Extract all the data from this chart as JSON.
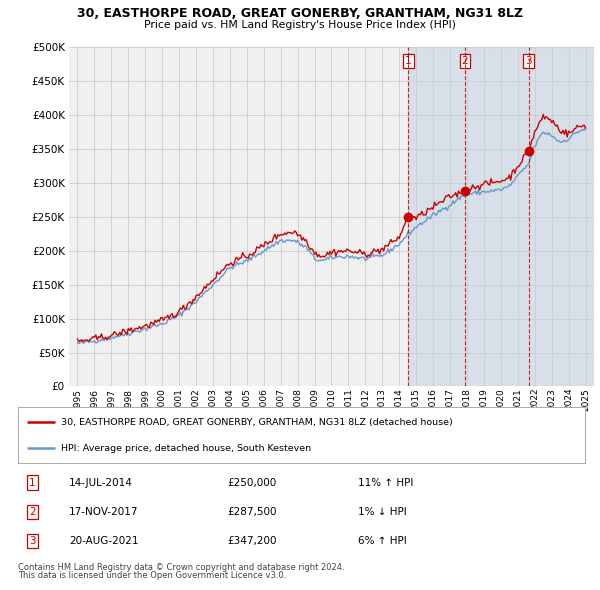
{
  "title": "30, EASTHORPE ROAD, GREAT GONERBY, GRANTHAM, NG31 8LZ",
  "subtitle": "Price paid vs. HM Land Registry's House Price Index (HPI)",
  "ylabel_ticks": [
    "£0",
    "£50K",
    "£100K",
    "£150K",
    "£200K",
    "£250K",
    "£300K",
    "£350K",
    "£400K",
    "£450K",
    "£500K"
  ],
  "ytick_values": [
    0,
    50000,
    100000,
    150000,
    200000,
    250000,
    300000,
    350000,
    400000,
    450000,
    500000
  ],
  "legend_line1": "30, EASTHORPE ROAD, GREAT GONERBY, GRANTHAM, NG31 8LZ (detached house)",
  "legend_line2": "HPI: Average price, detached house, South Kesteven",
  "sales": [
    {
      "num": 1,
      "date": "14-JUL-2014",
      "price": 250000,
      "hpi_pct": "11%",
      "hpi_dir": "↑"
    },
    {
      "num": 2,
      "date": "17-NOV-2017",
      "price": 287500,
      "hpi_pct": "1%",
      "hpi_dir": "↓"
    },
    {
      "num": 3,
      "date": "20-AUG-2021",
      "price": 347200,
      "hpi_pct": "6%",
      "hpi_dir": "↑"
    }
  ],
  "sale_dates_decimal": [
    2014.54,
    2017.88,
    2021.64
  ],
  "sale_prices": [
    250000,
    287500,
    347200
  ],
  "footnote1": "Contains HM Land Registry data © Crown copyright and database right 2024.",
  "footnote2": "This data is licensed under the Open Government Licence v3.0.",
  "hpi_color": "#6699cc",
  "price_color": "#cc0000",
  "sale_marker_color": "#cc0000",
  "vline_color": "#cc0000",
  "bg_color": "#ffffff",
  "plot_bg_color": "#f0f0f0",
  "shade_color": "#ddeeff",
  "grid_color": "#cccccc"
}
